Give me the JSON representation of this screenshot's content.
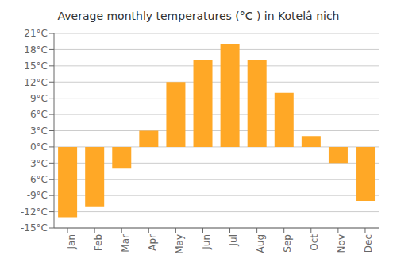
{
  "chart_data": {
    "type": "bar",
    "title": "Average monthly temperatures (°C ) in Kotelâ  nich",
    "categories": [
      "Jan",
      "Feb",
      "Mar",
      "Apr",
      "May",
      "Jun",
      "Jul",
      "Aug",
      "Sep",
      "Oct",
      "Nov",
      "Dec"
    ],
    "values": [
      -13,
      -11,
      -4,
      3,
      12,
      16,
      19,
      16,
      10,
      2,
      -3,
      -10
    ],
    "color": "#FFA826",
    "ylim": [
      -15,
      21
    ],
    "yticks": [
      {
        "value": -15,
        "label": "-15°C"
      },
      {
        "value": -12,
        "label": "-12°C"
      },
      {
        "value": -9,
        "label": "-9°C"
      },
      {
        "value": -6,
        "label": "-6°C"
      },
      {
        "value": -3,
        "label": "-3°C"
      },
      {
        "value": 0,
        "label": "0°C"
      },
      {
        "value": 3,
        "label": "3°C"
      },
      {
        "value": 6,
        "label": "6°C"
      },
      {
        "value": 9,
        "label": "9°C"
      },
      {
        "value": 12,
        "label": "12°C"
      },
      {
        "value": 15,
        "label": "15°C"
      },
      {
        "value": 18,
        "label": "18°C"
      },
      {
        "value": 21,
        "label": "21°C"
      }
    ],
    "grid": true
  }
}
